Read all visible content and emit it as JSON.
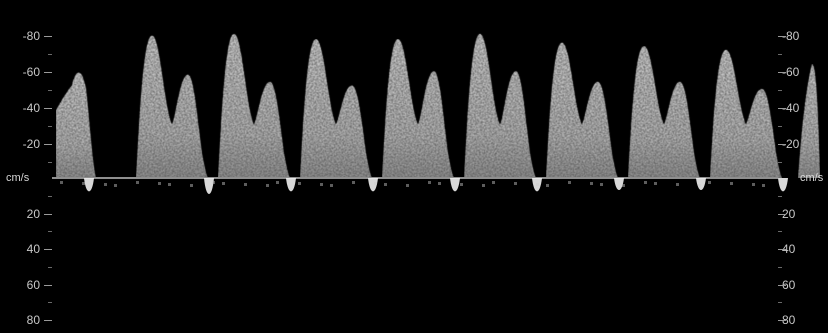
{
  "unit": "cm/s",
  "scale": {
    "left_ticks": [
      "-80",
      "-60",
      "-40",
      "-20",
      "20",
      "40",
      "60",
      "80"
    ],
    "right_ticks": [
      "-80",
      "-60",
      "-40",
      "-20",
      "20",
      "40",
      "60",
      "80"
    ],
    "values": [
      -80,
      -60,
      -40,
      -20,
      20,
      40,
      60,
      80
    ],
    "range": [
      -80,
      80
    ]
  },
  "colors": {
    "background": "#000000",
    "signal": "#ffffff",
    "baseline": "#8f8f8f",
    "label": "#c8c8c8"
  },
  "waveform": {
    "cycles": [
      {
        "peak_systolic": -62,
        "peak_diastolic": -42,
        "reverse": 10
      },
      {
        "peak_systolic": -80,
        "peak_diastolic": -58,
        "reverse": 12
      },
      {
        "peak_systolic": -81,
        "peak_diastolic": -54,
        "reverse": 10
      },
      {
        "peak_systolic": -78,
        "peak_diastolic": -52,
        "reverse": 10
      },
      {
        "peak_systolic": -78,
        "peak_diastolic": -60,
        "reverse": 10
      },
      {
        "peak_systolic": -81,
        "peak_diastolic": -60,
        "reverse": 10
      },
      {
        "peak_systolic": -76,
        "peak_diastolic": -54,
        "reverse": 9
      },
      {
        "peak_systolic": -74,
        "peak_diastolic": -54,
        "reverse": 9
      },
      {
        "peak_systolic": -72,
        "peak_diastolic": -50,
        "reverse": 10
      },
      {
        "peak_systolic": -64,
        "peak_diastolic": 0,
        "reverse": 0
      }
    ]
  }
}
